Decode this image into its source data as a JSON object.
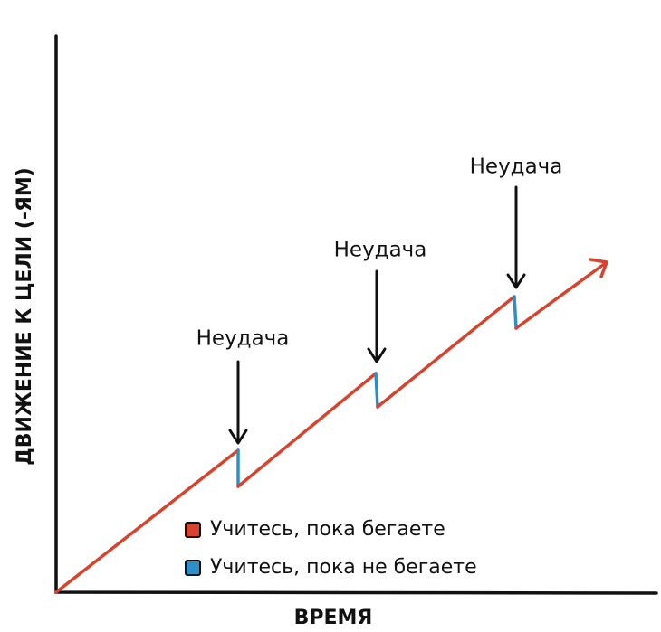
{
  "axes": {
    "x_label": "ВРЕМЯ",
    "y_label": "ДВИЖЕНИЕ К ЦЕЛИ (-ЯМ)"
  },
  "annotations": [
    "Неудача",
    "Неудача",
    "Неудача"
  ],
  "legend": [
    {
      "label": "Учитесь, пока бегаете",
      "color": "#d7432c"
    },
    {
      "label": "Учитесь, пока не бегаете",
      "color": "#2e8fc7"
    }
  ]
}
